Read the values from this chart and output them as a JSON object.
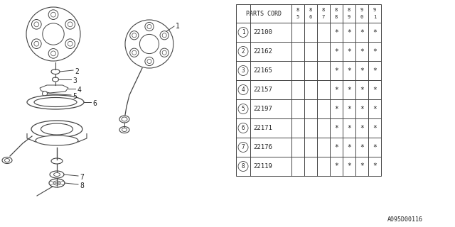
{
  "bg_color": "#ffffff",
  "parts_cord_header": "PARTS CORD",
  "year_cols": [
    [
      "8",
      "5"
    ],
    [
      "8",
      "6"
    ],
    [
      "8",
      "7"
    ],
    [
      "8",
      "8"
    ],
    [
      "8",
      "9"
    ],
    [
      "9",
      "0"
    ],
    [
      "9",
      "1"
    ]
  ],
  "rows": [
    {
      "num": "1",
      "code": "22100",
      "years": [
        false,
        false,
        false,
        true,
        true,
        true,
        true
      ]
    },
    {
      "num": "2",
      "code": "22162",
      "years": [
        false,
        false,
        false,
        true,
        true,
        true,
        true
      ]
    },
    {
      "num": "3",
      "code": "22165",
      "years": [
        false,
        false,
        false,
        true,
        true,
        true,
        true
      ]
    },
    {
      "num": "4",
      "code": "22157",
      "years": [
        false,
        false,
        false,
        true,
        true,
        true,
        true
      ]
    },
    {
      "num": "5",
      "code": "22197",
      "years": [
        false,
        false,
        false,
        true,
        true,
        true,
        true
      ]
    },
    {
      "num": "6",
      "code": "22171",
      "years": [
        false,
        false,
        false,
        true,
        true,
        true,
        true
      ]
    },
    {
      "num": "7",
      "code": "22176",
      "years": [
        false,
        false,
        false,
        true,
        true,
        true,
        true
      ]
    },
    {
      "num": "8",
      "code": "22119",
      "years": [
        false,
        false,
        false,
        true,
        true,
        true,
        true
      ]
    }
  ],
  "footer": "A095D00116",
  "line_color": "#444444",
  "text_color": "#222222"
}
